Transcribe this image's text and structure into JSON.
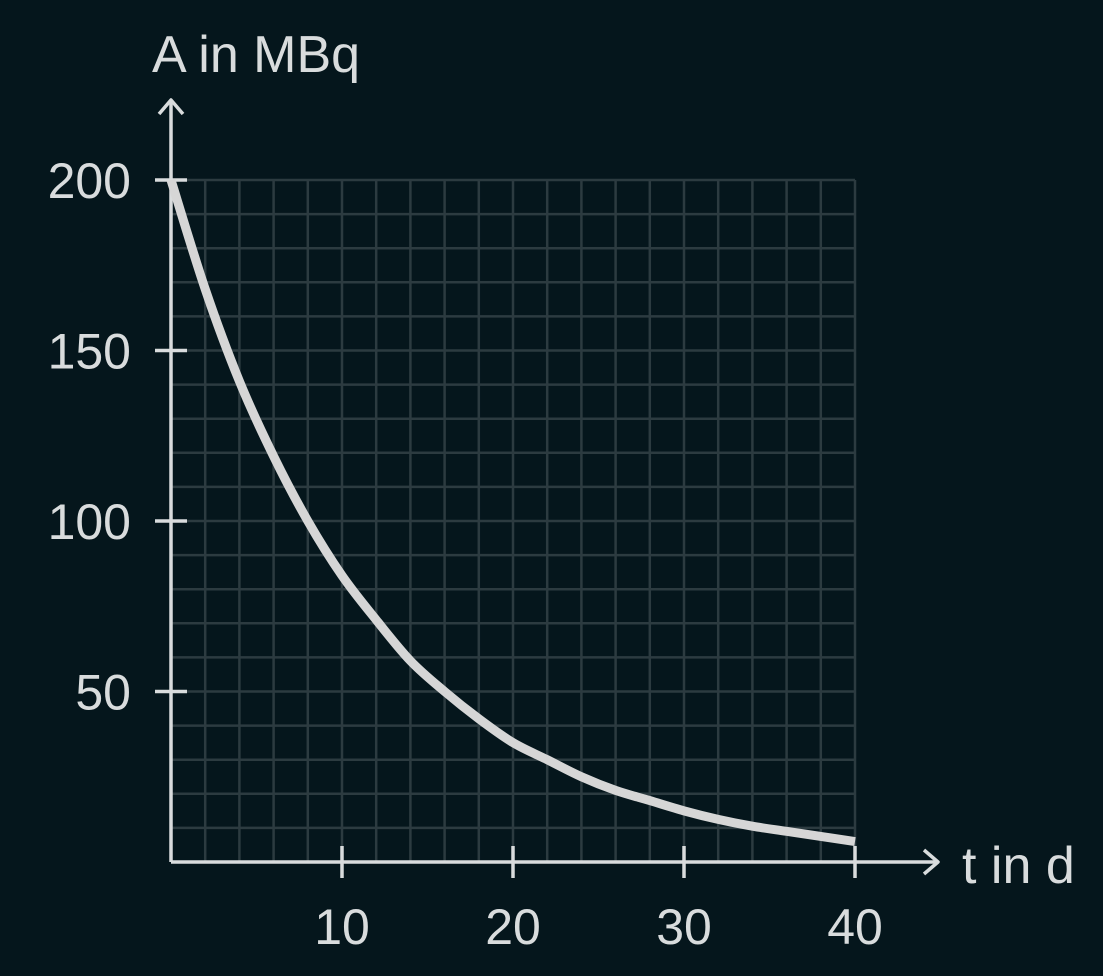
{
  "chart_data": {
    "type": "line",
    "title": "",
    "xlabel": "t in d",
    "ylabel": "A in MBq",
    "xlim": [
      0,
      40
    ],
    "ylim": [
      0,
      200
    ],
    "x_ticks": [
      10,
      20,
      30,
      40
    ],
    "y_ticks": [
      50,
      100,
      150,
      200
    ],
    "x_tick_labels": [
      "10",
      "20",
      "30",
      "40"
    ],
    "y_tick_labels": [
      "50",
      "100",
      "150",
      "200"
    ],
    "grid": true,
    "grid_minor_step_x": 2,
    "grid_minor_step_y": 10,
    "series": [
      {
        "x": [
          0,
          2,
          4,
          6,
          8,
          10,
          12,
          14,
          16,
          18,
          20,
          22,
          24,
          26,
          28,
          30,
          32,
          34,
          36,
          38,
          40
        ],
        "y": [
          200,
          168,
          141,
          119,
          100,
          84,
          71,
          59,
          50,
          42,
          35,
          30,
          25,
          21,
          18,
          15,
          12.5,
          10.5,
          9,
          7.5,
          6
        ],
        "color": "#d6d6d6"
      }
    ]
  },
  "colors": {
    "background": "#05161c",
    "grid": "#2c3b40",
    "axis": "#d9dcdd",
    "curve": "#d6d6d6"
  }
}
